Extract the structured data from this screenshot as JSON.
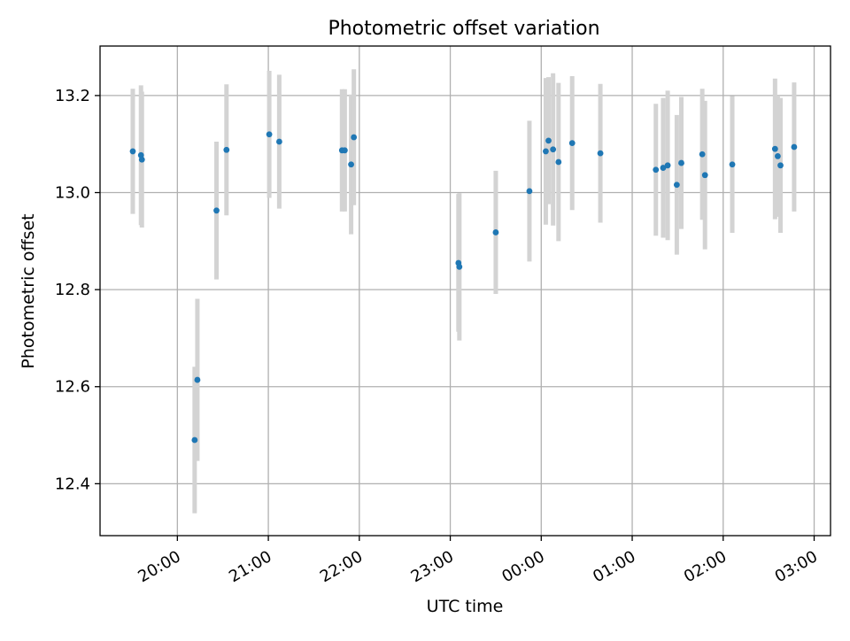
{
  "chart_data": {
    "type": "scatter",
    "title": "Photometric offset variation",
    "xlabel": "UTC time",
    "ylabel": "Photometric offset",
    "x_unit": "hours UTC, values above 24 continue past midnight",
    "xlim": [
      19.15,
      27.18
    ],
    "ylim": [
      12.293,
      13.302
    ],
    "xticks": [
      {
        "x": 20,
        "label": "20:00"
      },
      {
        "x": 21,
        "label": "21:00"
      },
      {
        "x": 22,
        "label": "22:00"
      },
      {
        "x": 23,
        "label": "23:00"
      },
      {
        "x": 24,
        "label": "00:00"
      },
      {
        "x": 25,
        "label": "01:00"
      },
      {
        "x": 26,
        "label": "02:00"
      },
      {
        "x": 27,
        "label": "03:00"
      }
    ],
    "yticks": [
      {
        "y": 12.4,
        "label": "12.4"
      },
      {
        "y": 12.6,
        "label": "12.6"
      },
      {
        "y": 12.8,
        "label": "12.8"
      },
      {
        "y": 13.0,
        "label": "13.0"
      },
      {
        "y": 13.2,
        "label": "13.2"
      }
    ],
    "grid": true,
    "point_color": "#1f77b4",
    "errorbar_color": "#d3d3d3",
    "points": [
      {
        "x": 19.51,
        "y": 13.085,
        "err": 0.129
      },
      {
        "x": 19.6,
        "y": 13.077,
        "err": 0.144
      },
      {
        "x": 19.61,
        "y": 13.068,
        "err": 0.14
      },
      {
        "x": 20.19,
        "y": 12.49,
        "err": 0.151
      },
      {
        "x": 20.22,
        "y": 12.614,
        "err": 0.167
      },
      {
        "x": 20.43,
        "y": 12.963,
        "err": 0.142
      },
      {
        "x": 20.54,
        "y": 13.088,
        "err": 0.135
      },
      {
        "x": 21.01,
        "y": 13.12,
        "err": 0.131
      },
      {
        "x": 21.12,
        "y": 13.105,
        "err": 0.138
      },
      {
        "x": 21.81,
        "y": 13.087,
        "err": 0.126
      },
      {
        "x": 21.84,
        "y": 13.087,
        "err": 0.126
      },
      {
        "x": 21.91,
        "y": 13.058,
        "err": 0.144
      },
      {
        "x": 21.94,
        "y": 13.114,
        "err": 0.14
      },
      {
        "x": 23.09,
        "y": 12.855,
        "err": 0.142
      },
      {
        "x": 23.1,
        "y": 12.847,
        "err": 0.152
      },
      {
        "x": 23.5,
        "y": 12.918,
        "err": 0.127
      },
      {
        "x": 23.87,
        "y": 13.003,
        "err": 0.145
      },
      {
        "x": 24.05,
        "y": 13.085,
        "err": 0.151
      },
      {
        "x": 24.08,
        "y": 13.107,
        "err": 0.131
      },
      {
        "x": 24.13,
        "y": 13.089,
        "err": 0.157
      },
      {
        "x": 24.19,
        "y": 13.063,
        "err": 0.163
      },
      {
        "x": 24.34,
        "y": 13.102,
        "err": 0.138
      },
      {
        "x": 24.65,
        "y": 13.081,
        "err": 0.143
      },
      {
        "x": 25.26,
        "y": 13.047,
        "err": 0.136
      },
      {
        "x": 25.34,
        "y": 13.051,
        "err": 0.144
      },
      {
        "x": 25.39,
        "y": 13.056,
        "err": 0.154
      },
      {
        "x": 25.49,
        "y": 13.016,
        "err": 0.144
      },
      {
        "x": 25.54,
        "y": 13.061,
        "err": 0.136
      },
      {
        "x": 25.77,
        "y": 13.079,
        "err": 0.135
      },
      {
        "x": 25.8,
        "y": 13.036,
        "err": 0.153
      },
      {
        "x": 26.1,
        "y": 13.058,
        "err": 0.141
      },
      {
        "x": 26.57,
        "y": 13.09,
        "err": 0.145
      },
      {
        "x": 26.6,
        "y": 13.075,
        "err": 0.125
      },
      {
        "x": 26.63,
        "y": 13.056,
        "err": 0.139
      },
      {
        "x": 26.78,
        "y": 13.094,
        "err": 0.133
      }
    ]
  }
}
